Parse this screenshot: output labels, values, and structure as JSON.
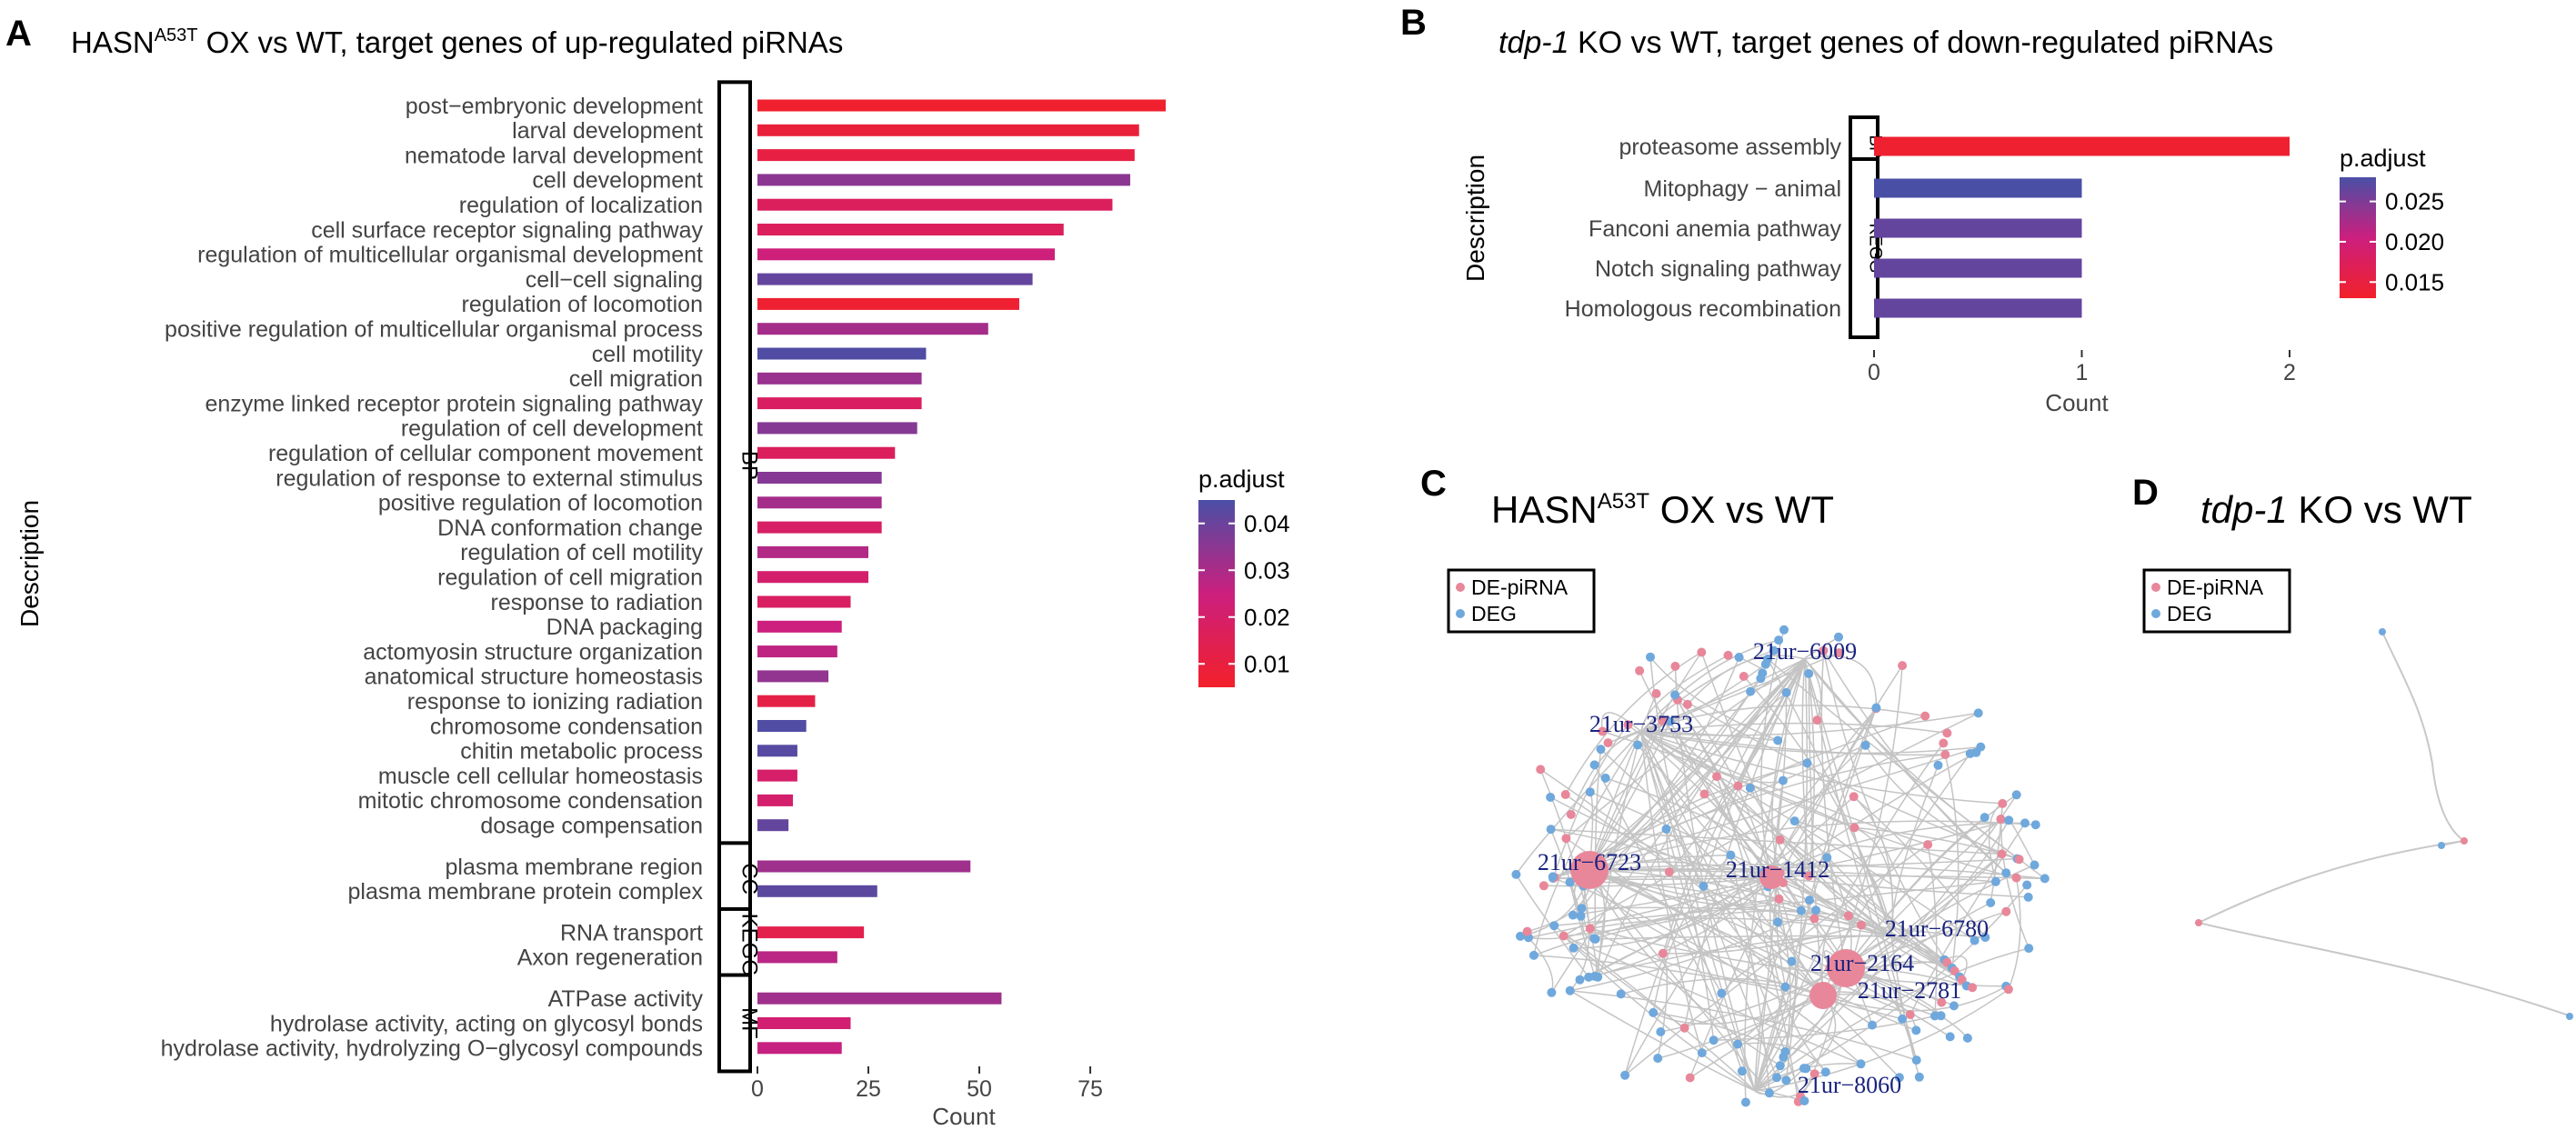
{
  "chart_data": [
    {
      "panel": "A",
      "type": "bar",
      "orientation": "horizontal",
      "title": "HASN",
      "title_sup": "A53T",
      "title_rest": " OX vs WT, target genes of up-regulated piRNAs",
      "xlabel": "Count",
      "ylabel": "Description",
      "xlim": [
        0,
        92
      ],
      "xticks": [
        0,
        25,
        50,
        75
      ],
      "color_scale": {
        "name": "p.adjust",
        "min": 0.005,
        "max": 0.045,
        "ticks": [
          0.04,
          0.03,
          0.02,
          0.01
        ],
        "low_color": "#F2202A",
        "mid_color": "#CC1F7E",
        "high_color": "#4A4FA6"
      },
      "groups": [
        {
          "name": "BP",
          "items": [
            {
              "label": "post−embryonic development",
              "value": 92,
              "p": 0.006
            },
            {
              "label": "larval development",
              "value": 86,
              "p": 0.009
            },
            {
              "label": "nematode larval development",
              "value": 85,
              "p": 0.011
            },
            {
              "label": "cell development",
              "value": 84,
              "p": 0.035
            },
            {
              "label": "regulation of localization",
              "value": 80,
              "p": 0.017
            },
            {
              "label": "cell surface receptor signaling pathway",
              "value": 69,
              "p": 0.017
            },
            {
              "label": "regulation of multicellular organismal development",
              "value": 67,
              "p": 0.024
            },
            {
              "label": "cell−cell signaling",
              "value": 62,
              "p": 0.041
            },
            {
              "label": "regulation of locomotion",
              "value": 59,
              "p": 0.007
            },
            {
              "label": "positive regulation of multicellular organismal process",
              "value": 52,
              "p": 0.031
            },
            {
              "label": "cell motility",
              "value": 38,
              "p": 0.044
            },
            {
              "label": "cell migration",
              "value": 37,
              "p": 0.033
            },
            {
              "label": "enzyme linked receptor protein signaling pathway",
              "value": 37,
              "p": 0.018
            },
            {
              "label": "regulation of cell development",
              "value": 36,
              "p": 0.036
            },
            {
              "label": "regulation of cellular component movement",
              "value": 31,
              "p": 0.017
            },
            {
              "label": "regulation of response to external stimulus",
              "value": 28,
              "p": 0.036
            },
            {
              "label": "positive regulation of locomotion",
              "value": 28,
              "p": 0.031
            },
            {
              "label": "DNA conformation change",
              "value": 28,
              "p": 0.019
            },
            {
              "label": "regulation of cell motility",
              "value": 25,
              "p": 0.029
            },
            {
              "label": "regulation of cell migration",
              "value": 25,
              "p": 0.021
            },
            {
              "label": "response to radiation",
              "value": 21,
              "p": 0.018
            },
            {
              "label": "DNA packaging",
              "value": 19,
              "p": 0.025
            },
            {
              "label": "actomyosin structure organization",
              "value": 18,
              "p": 0.027
            },
            {
              "label": "anatomical structure homeostasis",
              "value": 16,
              "p": 0.034
            },
            {
              "label": "response to ionizing radiation",
              "value": 13,
              "p": 0.012
            },
            {
              "label": "chromosome condensation",
              "value": 11,
              "p": 0.044
            },
            {
              "label": "chitin metabolic process",
              "value": 9,
              "p": 0.043
            },
            {
              "label": "muscle cell cellular homeostasis",
              "value": 9,
              "p": 0.02
            },
            {
              "label": "mitotic chromosome condensation",
              "value": 8,
              "p": 0.021
            },
            {
              "label": "dosage compensation",
              "value": 7,
              "p": 0.041
            }
          ]
        },
        {
          "name": "CC",
          "items": [
            {
              "label": "plasma membrane region",
              "value": 48,
              "p": 0.032
            },
            {
              "label": "plasma membrane protein complex",
              "value": 27,
              "p": 0.042
            }
          ]
        },
        {
          "name": "KEGG",
          "items": [
            {
              "label": "RNA transport",
              "value": 24,
              "p": 0.013
            },
            {
              "label": "Axon regeneration",
              "value": 18,
              "p": 0.028
            }
          ]
        },
        {
          "name": "MF",
          "items": [
            {
              "label": "ATPase activity",
              "value": 55,
              "p": 0.032
            },
            {
              "label": "hydrolase activity, acting on glycosyl bonds",
              "value": 21,
              "p": 0.022
            },
            {
              "label": "hydrolase activity, hydrolyzing O−glycosyl compounds",
              "value": 19,
              "p": 0.026
            }
          ]
        }
      ]
    },
    {
      "panel": "B",
      "type": "bar",
      "orientation": "horizontal",
      "title_italic": "tdp-1",
      "title_rest": " KO vs WT, target genes of down-regulated piRNAs",
      "xlabel": "Count",
      "ylabel": "Description",
      "xlim": [
        0,
        2
      ],
      "xticks": [
        0,
        1,
        2
      ],
      "color_scale": {
        "name": "p.adjust",
        "min": 0.013,
        "max": 0.028,
        "ticks": [
          0.025,
          0.02,
          0.015
        ],
        "low_color": "#F2202A",
        "mid_color": "#CC1F7E",
        "high_color": "#4A4FA6"
      },
      "groups": [
        {
          "name": "BP",
          "items": [
            {
              "label": "proteasome assembly",
              "value": 2,
              "p": 0.0135
            }
          ]
        },
        {
          "name": "KEGG",
          "items": [
            {
              "label": "Mitophagy − animal",
              "value": 1,
              "p": 0.028
            },
            {
              "label": "Fanconi anemia pathway",
              "value": 1,
              "p": 0.0265
            },
            {
              "label": "Notch signaling pathway",
              "value": 1,
              "p": 0.0265
            },
            {
              "label": "Homologous recombination",
              "value": 1,
              "p": 0.0265
            }
          ]
        }
      ]
    },
    {
      "panel": "C",
      "type": "network",
      "title": "HASN",
      "title_sup": "A53T",
      "title_rest": " OX vs WT",
      "legend": [
        {
          "name": "DE-piRNA",
          "color": "#E8879A"
        },
        {
          "name": "DEG",
          "color": "#6FA8DC"
        }
      ],
      "hub_labels": [
        "21ur−6009",
        "21ur−3753",
        "21ur−6723",
        "21ur−1412",
        "21ur−6780",
        "21ur−2164",
        "21ur−2781",
        "21ur−8060"
      ]
    },
    {
      "panel": "D",
      "type": "network",
      "title_italic": "tdp-1",
      "title_rest": " KO vs WT",
      "legend": [
        {
          "name": "DE-piRNA",
          "color": "#E8879A"
        },
        {
          "name": "DEG",
          "color": "#6FA8DC"
        }
      ]
    }
  ]
}
